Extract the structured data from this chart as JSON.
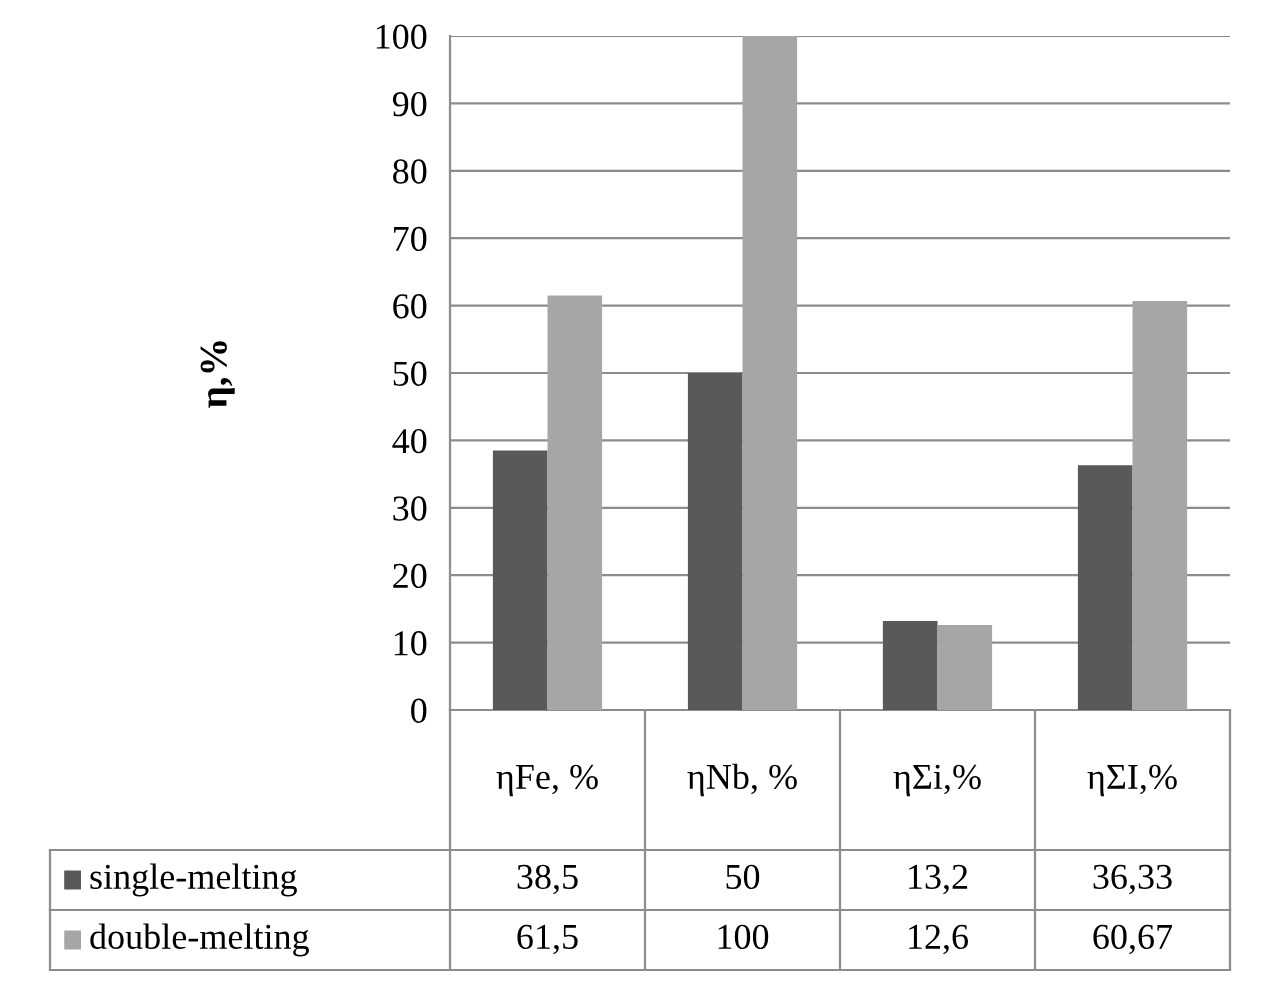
{
  "chart_data": {
    "type": "bar",
    "ylabel": "η,%",
    "categories": [
      "ηFe, %",
      "ηNb, %",
      "ηΣi,%",
      "ηΣI,%"
    ],
    "series": [
      {
        "name": "single-melting",
        "color": "#595959",
        "values": [
          38.5,
          50,
          13.2,
          36.33
        ],
        "value_labels": [
          "38,5",
          "50",
          "13,2",
          "36,33"
        ]
      },
      {
        "name": "double-melting",
        "color": "#a6a6a6",
        "values": [
          61.5,
          100,
          12.6,
          60.67
        ],
        "value_labels": [
          "61,5",
          "100",
          "12,6",
          "60,67"
        ]
      }
    ],
    "ylim": [
      0,
      100
    ],
    "yticks": [
      0,
      10,
      20,
      30,
      40,
      50,
      60,
      70,
      80,
      90,
      100
    ],
    "grid": "y",
    "legend": "bottom"
  }
}
